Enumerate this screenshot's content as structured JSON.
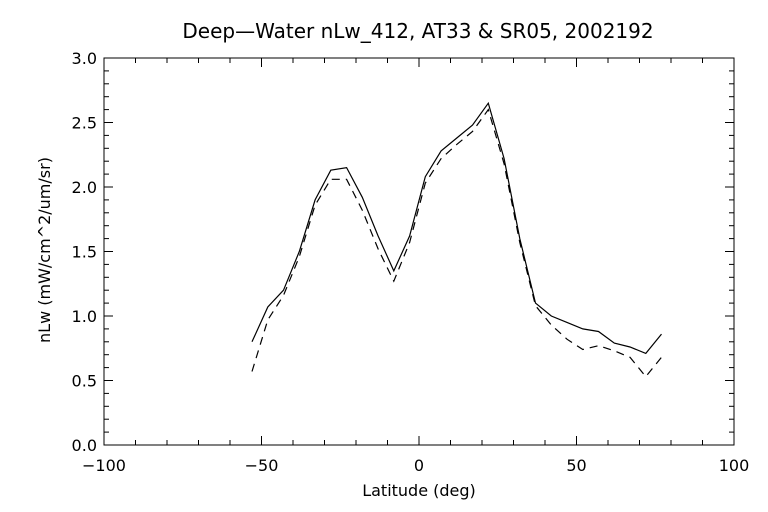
{
  "chart_data": {
    "type": "line",
    "title": "Deep—Water nLw_412, AT33 & SR05, 2002192",
    "xlabel": "Latitude (deg)",
    "ylabel": "nLw (mW/cm^2/um/sr)",
    "xlim": [
      -100,
      100
    ],
    "ylim": [
      0.0,
      3.0
    ],
    "x_ticks": [
      -100,
      -50,
      0,
      50,
      100
    ],
    "x_tick_labels": [
      "−100",
      "−50",
      "0",
      "50",
      "100"
    ],
    "y_ticks": [
      0.0,
      0.5,
      1.0,
      1.5,
      2.0,
      2.5,
      3.0
    ],
    "y_tick_labels": [
      "0.0",
      "0.5",
      "1.0",
      "1.5",
      "2.0",
      "2.5",
      "3.0"
    ],
    "x_minor_step": 10,
    "y_minor_step": 0.1,
    "grid": false,
    "series": [
      {
        "style": "solid",
        "x": [
          -53,
          -48,
          -43,
          -38,
          -33,
          -28,
          -23,
          -18,
          -13,
          -8,
          -3,
          2,
          7,
          12,
          17,
          22,
          27,
          32,
          37,
          42,
          47,
          52,
          57,
          62,
          67,
          72,
          77
        ],
        "y": [
          0.8,
          1.07,
          1.2,
          1.5,
          1.9,
          2.13,
          2.15,
          1.92,
          1.62,
          1.35,
          1.62,
          2.08,
          2.28,
          2.38,
          2.48,
          2.65,
          2.22,
          1.6,
          1.1,
          1.0,
          0.95,
          0.9,
          0.88,
          0.79,
          0.76,
          0.71,
          0.86
        ]
      },
      {
        "style": "dashed",
        "x": [
          -53,
          -48,
          -43,
          -38,
          -33,
          -28,
          -23,
          -18,
          -13,
          -8,
          -3,
          2,
          7,
          12,
          17,
          22,
          27,
          32,
          37,
          42,
          47,
          52,
          57,
          62,
          67,
          72,
          77
        ],
        "y": [
          0.57,
          0.97,
          1.16,
          1.46,
          1.86,
          2.06,
          2.06,
          1.82,
          1.52,
          1.27,
          1.57,
          2.03,
          2.22,
          2.33,
          2.43,
          2.6,
          2.18,
          1.57,
          1.08,
          0.93,
          0.82,
          0.74,
          0.77,
          0.73,
          0.68,
          0.53,
          0.68
        ]
      }
    ]
  }
}
